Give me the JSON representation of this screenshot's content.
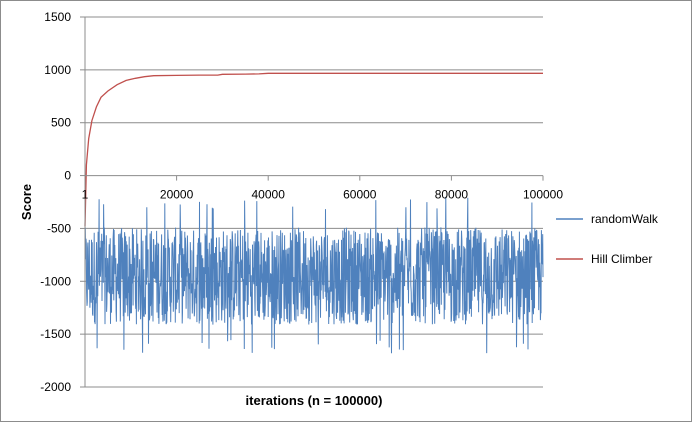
{
  "chart_data": {
    "type": "line",
    "title": "",
    "xlabel": "iterations (n = 100000)",
    "ylabel": "Score",
    "xlim": [
      1,
      100000
    ],
    "ylim": [
      -2000,
      1500
    ],
    "x_ticks": [
      1,
      20000,
      40000,
      60000,
      80000,
      100000
    ],
    "x_tick_labels": [
      "1",
      "20000",
      "40000",
      "60000",
      "80000",
      "100000"
    ],
    "y_ticks": [
      1500,
      1000,
      500,
      0,
      -500,
      -1000,
      -1500,
      -2000
    ],
    "y_tick_labels": [
      "1500",
      "1000",
      "500",
      "0",
      "-500",
      "-1000",
      "-1500",
      "-2000"
    ],
    "grid": true,
    "legend_position": "right",
    "series": [
      {
        "name": "randomWalk",
        "color": "#4f81bd",
        "style": "noise",
        "typical_range": [
          -1350,
          -550
        ],
        "extreme_range": [
          -1700,
          -320
        ],
        "mean": -950
      },
      {
        "name": "Hill Climber",
        "color": "#c0504d",
        "style": "line",
        "x": [
          1,
          300,
          800,
          1500,
          2500,
          3500,
          5000,
          7000,
          9000,
          11000,
          13000,
          15000,
          20000,
          25000,
          29000,
          30000,
          35000,
          38000,
          40000,
          50000,
          60000,
          70000,
          80000,
          90000,
          100000
        ],
        "y": [
          -480,
          100,
          350,
          520,
          650,
          740,
          800,
          860,
          900,
          920,
          935,
          945,
          948,
          950,
          950,
          958,
          960,
          962,
          967,
          967,
          967,
          967,
          967,
          967,
          967
        ]
      }
    ]
  }
}
